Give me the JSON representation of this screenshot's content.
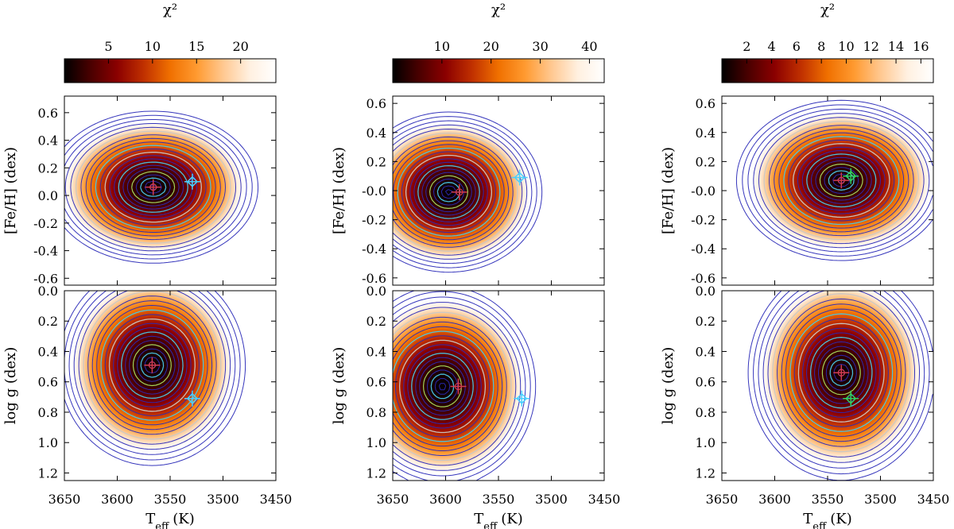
{
  "figure": {
    "colorbar_title": "χ²",
    "x_label": "T_eff (K)",
    "x_label_main": "T",
    "x_label_sub": "eff",
    "x_label_unit": "(K)",
    "upper_y_label": "[Fe/H] (dex)",
    "lower_y_label": "log g (dex)"
  },
  "chart_data": [
    {
      "type": "heatmap",
      "title": "χ²",
      "xlabel": "T_eff (K)",
      "colormap": [
        "#000000",
        "#4a0000",
        "#8b0000",
        "#c03000",
        "#f07000",
        "#ff9a30",
        "#ffc890",
        "#fff0e0",
        "#ffffff"
      ],
      "contour_colors": [
        "#2b2bb8",
        "#48c8e8",
        "#a8e060",
        "#c8c8c8"
      ],
      "colorbar": {
        "range": [
          0,
          24
        ],
        "ticks": [
          5,
          10,
          15,
          20
        ],
        "tick_labels": [
          "5",
          "10",
          "15",
          "20"
        ]
      },
      "panels": [
        {
          "ylabel": "[Fe/H] (dex)",
          "xlim": [
            3650,
            3450
          ],
          "ylim": [
            -0.65,
            0.72
          ],
          "y_inverted": false,
          "xticks": [
            3650,
            3600,
            3550,
            3500,
            3450
          ],
          "xtick_labels": [
            "3650",
            "3600",
            "3550",
            "3500",
            "3450"
          ],
          "yticks": [
            -0.6,
            -0.4,
            -0.2,
            0.0,
            0.2,
            0.4,
            0.6
          ],
          "ytick_labels": [
            "-0.6",
            "-0.4",
            "-0.2",
            "0.0",
            "0.2",
            "0.4",
            "0.6"
          ],
          "minimum": {
            "x": 3566,
            "y": 0.06,
            "marker": "red-cross"
          },
          "reference": {
            "x": 3529,
            "y": 0.1,
            "marker": "cyan-diamond-cross"
          },
          "spread": {
            "x": 45,
            "y": 0.25,
            "rot": -35,
            "shift_x": 0,
            "shift_y": 0
          },
          "max_chi2": 24
        },
        {
          "ylabel": "log g (dex)",
          "xlim": [
            3650,
            3450
          ],
          "ylim": [
            0.0,
            1.25
          ],
          "y_inverted": true,
          "xticks": [
            3650,
            3600,
            3550,
            3500,
            3450
          ],
          "xtick_labels": [
            "3650",
            "3600",
            "3550",
            "3500",
            "3450"
          ],
          "yticks": [
            0.0,
            0.2,
            0.4,
            0.6,
            0.8,
            1.0,
            1.2
          ],
          "ytick_labels": [
            "0.0",
            "0.2",
            "0.4",
            "0.6",
            "0.8",
            "1.0",
            "1.2"
          ],
          "minimum": {
            "x": 3567,
            "y": 0.49,
            "marker": "red-cross"
          },
          "reference": {
            "x": 3529,
            "y": 0.71,
            "marker": "cyan-diamond-cross"
          },
          "spread": {
            "x": 40,
            "y": 0.3,
            "rot": 25,
            "shift_x": 0,
            "shift_y": 0
          },
          "max_chi2": 24
        }
      ]
    },
    {
      "type": "heatmap",
      "title": "χ²",
      "xlabel": "T_eff (K)",
      "colormap": [
        "#000000",
        "#4a0000",
        "#8b0000",
        "#c03000",
        "#f07000",
        "#ff9a30",
        "#ffc890",
        "#fff0e0",
        "#ffffff"
      ],
      "contour_colors": [
        "#2b2bb8",
        "#48c8e8",
        "#a8e060",
        "#c8c8c8"
      ],
      "colorbar": {
        "range": [
          0,
          43
        ],
        "ticks": [
          10,
          20,
          30,
          40
        ],
        "tick_labels": [
          "10",
          "20",
          "30",
          "40"
        ]
      },
      "panels": [
        {
          "ylabel": "[Fe/H] (dex)",
          "xlim": [
            3650,
            3450
          ],
          "ylim": [
            -0.65,
            0.65
          ],
          "y_inverted": false,
          "xticks": [
            3650,
            3600,
            3550,
            3500,
            3450
          ],
          "xtick_labels": [
            "3650",
            "3600",
            "3550",
            "3500",
            "3450"
          ],
          "yticks": [
            -0.6,
            -0.4,
            -0.2,
            0.0,
            0.2,
            0.4,
            0.6
          ],
          "ytick_labels": [
            "-0.6",
            "-0.4",
            "-0.2",
            "-0.0",
            "0.2",
            "0.4",
            "0.6"
          ],
          "minimum": {
            "x": 3587,
            "y": -0.01,
            "marker": "red-cross"
          },
          "reference": {
            "x": 3530,
            "y": 0.09,
            "marker": "cyan-diamond-cross"
          },
          "spread": {
            "x": 40,
            "y": 0.25,
            "rot": -10,
            "shift_x": 10,
            "shift_y": 0
          },
          "max_chi2": 43
        },
        {
          "ylabel": "log g (dex)",
          "xlim": [
            3650,
            3450
          ],
          "ylim": [
            0.0,
            1.25
          ],
          "y_inverted": true,
          "xticks": [
            3650,
            3600,
            3550,
            3500,
            3450
          ],
          "xtick_labels": [
            "3650",
            "3600",
            "3550",
            "3500",
            "3450"
          ],
          "yticks": [
            0.0,
            0.2,
            0.4,
            0.6,
            0.8,
            1.0,
            1.2
          ],
          "ytick_labels": [
            "0.0",
            "0.2",
            "0.4",
            "0.6",
            "0.8",
            "1.0",
            "1.2"
          ],
          "minimum": {
            "x": 3588,
            "y": 0.63,
            "marker": "red-cross"
          },
          "reference": {
            "x": 3528,
            "y": 0.71,
            "marker": "cyan-diamond-cross"
          },
          "spread": {
            "x": 40,
            "y": 0.3,
            "rot": 15,
            "shift_x": 15,
            "shift_y": 0
          },
          "max_chi2": 43
        }
      ]
    },
    {
      "type": "heatmap",
      "title": "χ²",
      "xlabel": "T_eff (K)",
      "colormap": [
        "#000000",
        "#4a0000",
        "#8b0000",
        "#c03000",
        "#f07000",
        "#ff9a30",
        "#ffc890",
        "#fff0e0",
        "#ffffff"
      ],
      "contour_colors": [
        "#2b2bb8",
        "#48c8e8",
        "#a8e060",
        "#c8c8c8"
      ],
      "colorbar": {
        "range": [
          0,
          17
        ],
        "ticks": [
          2,
          4,
          6,
          8,
          10,
          12,
          14,
          16
        ],
        "tick_labels": [
          "2",
          "4",
          "6",
          "8",
          "10",
          "12",
          "14",
          "16"
        ]
      },
      "panels": [
        {
          "ylabel": "[Fe/H] (dex)",
          "xlim": [
            3650,
            3450
          ],
          "ylim": [
            -0.65,
            0.65
          ],
          "y_inverted": false,
          "xticks": [
            3650,
            3600,
            3550,
            3500,
            3450
          ],
          "xtick_labels": [
            "3650",
            "3600",
            "3550",
            "3500",
            "3450"
          ],
          "yticks": [
            -0.6,
            -0.4,
            -0.2,
            0.0,
            0.2,
            0.4,
            0.6
          ],
          "ytick_labels": [
            "-0.6",
            "-0.4",
            "-0.2",
            "-0.0",
            "0.2",
            "0.4",
            "0.6"
          ],
          "minimum": {
            "x": 3537,
            "y": 0.07,
            "marker": "red-cross"
          },
          "reference": {
            "x": 3528,
            "y": 0.1,
            "marker": "green-diamond-cross"
          },
          "spread": {
            "x": 45,
            "y": 0.25,
            "rot": -5,
            "shift_x": 0,
            "shift_y": 0
          },
          "max_chi2": 17
        },
        {
          "ylabel": "log g (dex)",
          "xlim": [
            3650,
            3450
          ],
          "ylim": [
            0.0,
            1.25
          ],
          "y_inverted": true,
          "xticks": [
            3650,
            3600,
            3550,
            3500,
            3450
          ],
          "xtick_labels": [
            "3650",
            "3600",
            "3550",
            "3500",
            "3450"
          ],
          "yticks": [
            0.0,
            0.2,
            0.4,
            0.6,
            0.8,
            1.0,
            1.2
          ],
          "ytick_labels": [
            "0.0",
            "0.2",
            "0.4",
            "0.6",
            "0.8",
            "1.0",
            "1.2"
          ],
          "minimum": {
            "x": 3537,
            "y": 0.54,
            "marker": "red-cross"
          },
          "reference": {
            "x": 3528,
            "y": 0.71,
            "marker": "green-diamond-cross"
          },
          "spread": {
            "x": 40,
            "y": 0.32,
            "rot": 10,
            "shift_x": 0,
            "shift_y": 0
          },
          "max_chi2": 17
        }
      ]
    }
  ]
}
